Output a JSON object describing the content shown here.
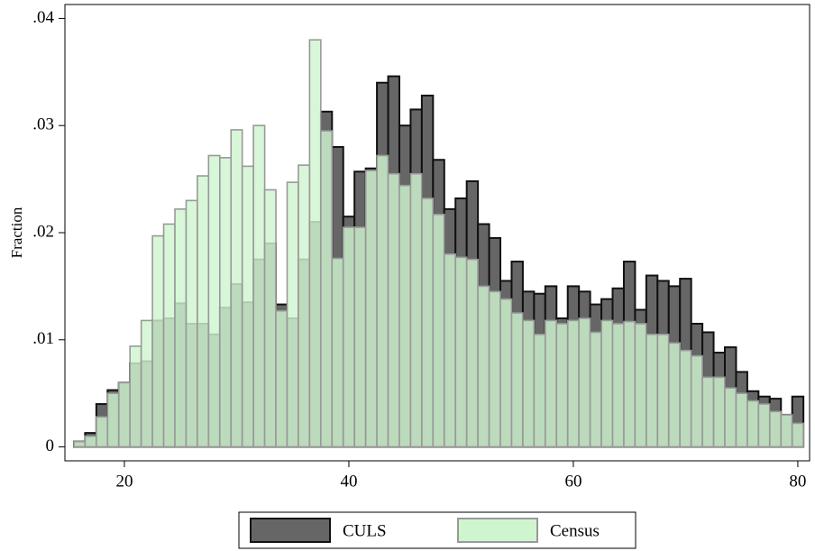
{
  "chart_data": {
    "type": "histogram",
    "y_label": "Fraction",
    "bins": [
      15.5,
      16.5,
      17.5,
      18.5,
      19.5,
      20.5,
      21.5,
      22.5,
      23.5,
      24.5,
      25.5,
      26.5,
      27.5,
      28.5,
      29.5,
      30.5,
      31.5,
      32.5,
      33.5,
      34.5,
      35.5,
      36.5,
      37.5,
      38.5,
      39.5,
      40.5,
      41.5,
      42.5,
      43.5,
      44.5,
      45.5,
      46.5,
      47.5,
      48.5,
      49.5,
      50.5,
      51.5,
      52.5,
      53.5,
      54.5,
      55.5,
      56.5,
      57.5,
      58.5,
      59.5,
      60.5,
      61.5,
      62.5,
      63.5,
      64.5,
      65.5,
      66.5,
      67.5,
      68.5,
      69.5,
      70.5,
      71.5,
      72.5,
      73.5,
      74.5,
      75.5,
      76.5,
      77.5,
      78.5,
      79.5,
      80.5
    ],
    "series": [
      {
        "name": "CULS",
        "color": "#666666",
        "values": [
          0.0005,
          0.0013,
          0.004,
          0.0053,
          0.006,
          0.0078,
          0.008,
          0.0118,
          0.012,
          0.0134,
          0.0115,
          0.0115,
          0.0105,
          0.013,
          0.0152,
          0.0135,
          0.0175,
          0.019,
          0.0133,
          0.012,
          0.0175,
          0.021,
          0.0313,
          0.028,
          0.0215,
          0.0257,
          0.026,
          0.034,
          0.0346,
          0.03,
          0.0315,
          0.0328,
          0.0268,
          0.0222,
          0.0232,
          0.0248,
          0.0208,
          0.0195,
          0.0155,
          0.0173,
          0.0145,
          0.0143,
          0.015,
          0.012,
          0.015,
          0.0145,
          0.0133,
          0.0138,
          0.0148,
          0.0173,
          0.0128,
          0.016,
          0.0155,
          0.015,
          0.0157,
          0.0115,
          0.0107,
          0.0088,
          0.0093,
          0.007,
          0.0052,
          0.0047,
          0.0045,
          0.003,
          0.0047
        ]
      },
      {
        "name": "Census",
        "color": "#cff5cf",
        "values": [
          0.0005,
          0.001,
          0.0028,
          0.005,
          0.006,
          0.0094,
          0.0118,
          0.0197,
          0.0208,
          0.0222,
          0.023,
          0.0253,
          0.0272,
          0.027,
          0.0296,
          0.0262,
          0.03,
          0.024,
          0.0127,
          0.0247,
          0.0263,
          0.038,
          0.0295,
          0.0176,
          0.0205,
          0.0205,
          0.0258,
          0.0272,
          0.0255,
          0.0244,
          0.0255,
          0.0232,
          0.0217,
          0.018,
          0.0177,
          0.0175,
          0.015,
          0.0145,
          0.0138,
          0.0125,
          0.0118,
          0.0105,
          0.0118,
          0.0115,
          0.0118,
          0.012,
          0.0107,
          0.0118,
          0.0115,
          0.0117,
          0.0115,
          0.0105,
          0.0105,
          0.0097,
          0.009,
          0.0085,
          0.0065,
          0.0065,
          0.0055,
          0.005,
          0.0043,
          0.004,
          0.0033,
          0.003,
          0.0022
        ]
      }
    ],
    "xlim": [
      14.7,
      81.05
    ],
    "xticks": [
      20,
      40,
      60,
      80
    ],
    "ylim": [
      -0.0013,
      0.0413
    ],
    "yticks": [
      0,
      {
        "value": 0.01,
        "label": ".01"
      },
      {
        "value": 0.02,
        "label": ".02"
      },
      {
        "value": 0.03,
        "label": ".03"
      },
      {
        "value": 0.04,
        "label": ".04"
      }
    ]
  }
}
